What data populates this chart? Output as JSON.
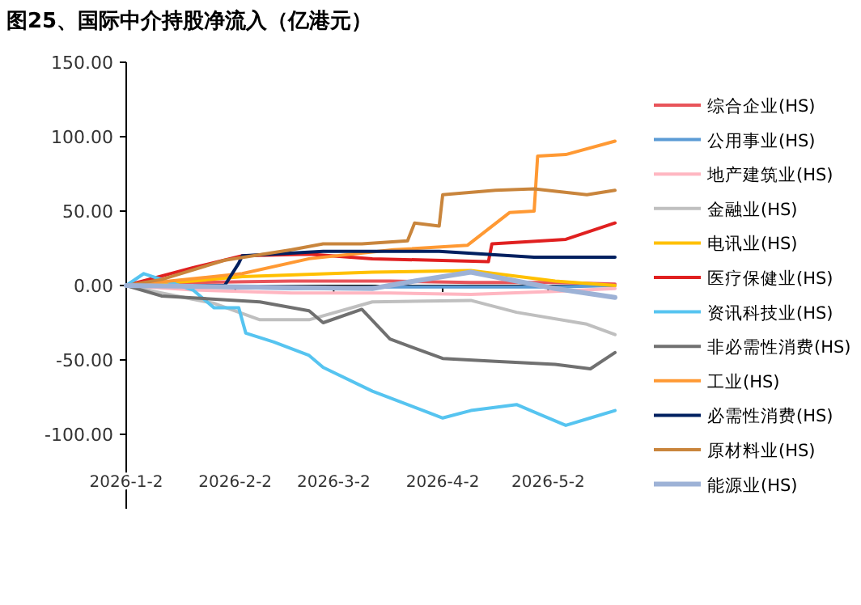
{
  "chart_data": {
    "type": "line",
    "title": "图25、国际中介持股净流入（亿港元）",
    "xlim": [
      "2026-01-02",
      "2026-05-21"
    ],
    "xticks": [
      {
        "value": "2026-01-02",
        "label": "2026-1-2"
      },
      {
        "value": "2026-02-02",
        "label": "2026-2-2"
      },
      {
        "value": "2026-03-02",
        "label": "2026-3-2"
      },
      {
        "value": "2026-04-02",
        "label": "2026-4-2"
      },
      {
        "value": "2026-05-02",
        "label": "2026-5-2"
      }
    ],
    "ylim": [
      -150,
      150
    ],
    "yticks": [
      {
        "value": 150,
        "label": "150.00"
      },
      {
        "value": 100,
        "label": "100.00"
      },
      {
        "value": 50,
        "label": "50.00"
      },
      {
        "value": 0,
        "label": "0.00"
      },
      {
        "value": -50,
        "label": "-50.00"
      },
      {
        "value": -100,
        "label": "-100.00"
      }
    ],
    "legend": "right",
    "marker": "none",
    "line_style": "solid",
    "series": [
      {
        "name": "综合企业(HS)",
        "color": "#e8545a",
        "x": [
          "2026-01-02",
          "2026-01-21",
          "2026-02-18",
          "2026-03-18",
          "2026-04-10",
          "2026-05-04",
          "2026-05-21"
        ],
        "values": [
          0,
          2,
          3,
          3,
          2,
          2,
          1
        ]
      },
      {
        "name": "公用事业(HS)",
        "color": "#5b9bd5",
        "x": [
          "2026-01-02",
          "2026-01-21",
          "2026-02-18",
          "2026-03-18",
          "2026-04-10",
          "2026-05-04",
          "2026-05-21"
        ],
        "values": [
          0,
          -1,
          -2,
          -1,
          -1,
          -1,
          0
        ]
      },
      {
        "name": "地产建筑业(HS)",
        "color": "#ffb6c1",
        "x": [
          "2026-01-02",
          "2026-01-21",
          "2026-02-18",
          "2026-03-18",
          "2026-04-10",
          "2026-05-04",
          "2026-05-21"
        ],
        "values": [
          0,
          -3,
          -5,
          -5,
          -6,
          -4,
          -2
        ]
      },
      {
        "name": "金融业(HS)",
        "color": "#bfbfbf",
        "x": [
          "2026-01-02",
          "2026-01-12",
          "2026-01-27",
          "2026-02-09",
          "2026-02-23",
          "2026-03-13",
          "2026-04-10",
          "2026-04-23",
          "2026-05-13",
          "2026-05-21"
        ],
        "values": [
          0,
          -5,
          -12,
          -23,
          -23,
          -11,
          -10,
          -18,
          -26,
          -33
        ]
      },
      {
        "name": "电讯业(HS)",
        "color": "#ffc000",
        "x": [
          "2026-01-02",
          "2026-01-21",
          "2026-02-04",
          "2026-03-13",
          "2026-04-10",
          "2026-05-04",
          "2026-05-21"
        ],
        "values": [
          0,
          3,
          6,
          9,
          10,
          3,
          0
        ]
      },
      {
        "name": "医疗保健业(HS)",
        "color": "#e02020",
        "x": [
          "2026-01-02",
          "2026-01-21",
          "2026-02-04",
          "2026-02-23",
          "2026-03-13",
          "2026-04-15",
          "2026-04-16",
          "2026-05-07",
          "2026-05-21"
        ],
        "values": [
          0,
          12,
          20,
          21,
          18,
          16,
          28,
          31,
          42
        ]
      },
      {
        "name": "资讯科技业(HS)",
        "color": "#56c4f0",
        "x": [
          "2026-01-02",
          "2026-01-07",
          "2026-01-21",
          "2026-01-27",
          "2026-02-03",
          "2026-02-05",
          "2026-02-13",
          "2026-02-23",
          "2026-02-27",
          "2026-03-13",
          "2026-04-02",
          "2026-04-10",
          "2026-04-23",
          "2026-05-07",
          "2026-05-14",
          "2026-05-21"
        ],
        "values": [
          0,
          8,
          -3,
          -15,
          -15,
          -32,
          -38,
          -47,
          -55,
          -71,
          -89,
          -84,
          -80,
          -94,
          -89,
          -84
        ]
      },
      {
        "name": "非必需性消费(HS)",
        "color": "#707070",
        "x": [
          "2026-01-02",
          "2026-01-12",
          "2026-02-09",
          "2026-02-23",
          "2026-02-27",
          "2026-03-10",
          "2026-03-18",
          "2026-04-02",
          "2026-04-17",
          "2026-05-04",
          "2026-05-14",
          "2026-05-21"
        ],
        "values": [
          0,
          -7,
          -11,
          -17,
          -25,
          -16,
          -36,
          -49,
          -51,
          -53,
          -56,
          -45
        ]
      },
      {
        "name": "工业(HS)",
        "color": "#ff9933",
        "x": [
          "2026-01-02",
          "2026-02-04",
          "2026-02-23",
          "2026-03-19",
          "2026-04-09",
          "2026-04-21",
          "2026-04-28",
          "2026-04-29",
          "2026-05-07",
          "2026-05-21"
        ],
        "values": [
          0,
          8,
          18,
          24,
          27,
          49,
          50,
          87,
          88,
          97
        ]
      },
      {
        "name": "必需性消费(HS)",
        "color": "#002060",
        "x": [
          "2026-01-02",
          "2026-01-30",
          "2026-02-03",
          "2026-02-04",
          "2026-02-27",
          "2026-04-01",
          "2026-04-28",
          "2026-05-21"
        ],
        "values": [
          0,
          0,
          15,
          20,
          23,
          23,
          19,
          19
        ]
      },
      {
        "name": "原材料业(HS)",
        "color": "#c9853c",
        "x": [
          "2026-01-02",
          "2026-01-12",
          "2026-01-30",
          "2026-02-18",
          "2026-02-27",
          "2026-03-10",
          "2026-03-23",
          "2026-03-25",
          "2026-04-01",
          "2026-04-02",
          "2026-04-17",
          "2026-04-28",
          "2026-05-13",
          "2026-05-21"
        ],
        "values": [
          0,
          4,
          17,
          24,
          28,
          28,
          30,
          42,
          40,
          61,
          64,
          65,
          61,
          64
        ]
      },
      {
        "name": "能源业(HS)",
        "color": "#9db2d6",
        "x": [
          "2026-01-02",
          "2026-02-04",
          "2026-03-13",
          "2026-03-25",
          "2026-04-10",
          "2026-05-04",
          "2026-05-21"
        ],
        "values": [
          0,
          -1,
          -2,
          3,
          9,
          -2,
          -8
        ]
      }
    ]
  }
}
